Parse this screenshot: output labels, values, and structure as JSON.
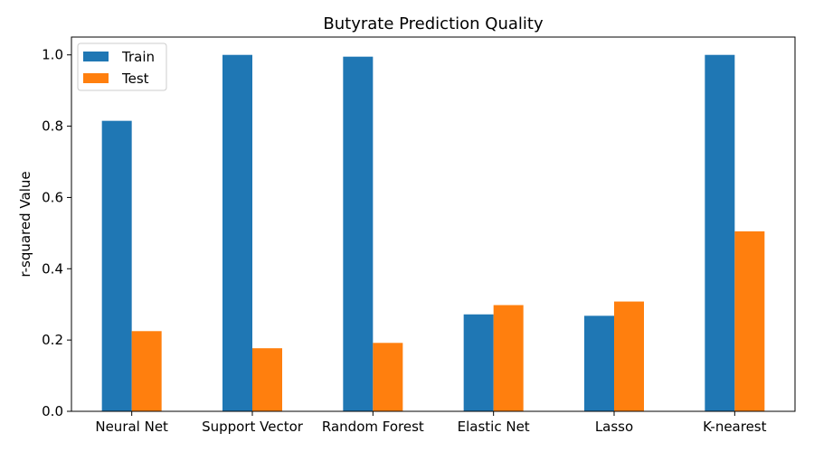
{
  "chart_data": {
    "type": "bar",
    "title": "Butyrate Prediction Quality",
    "xlabel": "",
    "ylabel": "r-squared Value",
    "categories": [
      "Neural Net",
      "Support Vector",
      "Random Forest",
      "Elastic Net",
      "Lasso",
      "K-nearest"
    ],
    "series": [
      {
        "name": "Train",
        "color": "#1f77b4",
        "values": [
          0.815,
          1.0,
          0.995,
          0.272,
          0.268,
          1.0
        ]
      },
      {
        "name": "Test",
        "color": "#ff7f0e",
        "values": [
          0.225,
          0.177,
          0.192,
          0.298,
          0.308,
          0.505
        ]
      }
    ],
    "ylim": [
      0,
      1.05
    ],
    "yticks": [
      "0.0",
      "0.2",
      "0.4",
      "0.6",
      "0.8",
      "1.0"
    ],
    "grid": false,
    "legend_position": "top-left"
  }
}
